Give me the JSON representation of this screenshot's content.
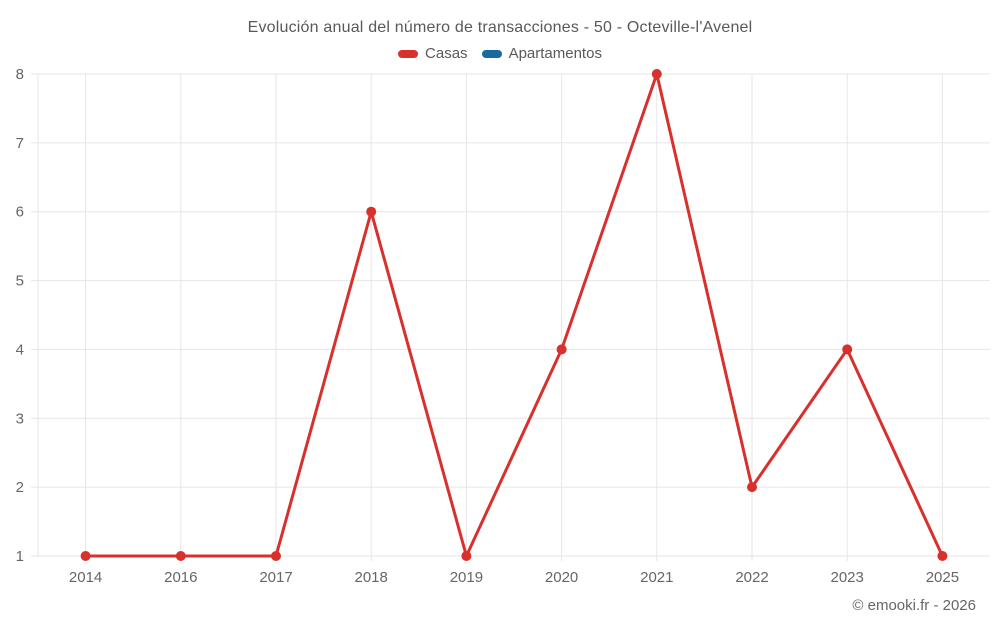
{
  "header": {
    "title": "Evolución anual del número de transacciones - 50 - Octeville-l'Avenel"
  },
  "legend": {
    "items": [
      {
        "label": "Casas",
        "color": "#d8302d"
      },
      {
        "label": "Apartamentos",
        "color": "#17699e"
      }
    ]
  },
  "footer": {
    "copyright": "© emooki.fr - 2026"
  },
  "chart_data": {
    "type": "line",
    "title": "Evolución anual del número de transacciones - 50 - Octeville-l'Avenel",
    "categories": [
      "2014",
      "2016",
      "2017",
      "2018",
      "2019",
      "2020",
      "2021",
      "2022",
      "2023",
      "2025"
    ],
    "series": [
      {
        "name": "Casas",
        "color": "#d8302d",
        "values": [
          1,
          1,
          1,
          6,
          1,
          4,
          8,
          2,
          4,
          1
        ]
      },
      {
        "name": "Apartamentos",
        "color": "#17699e",
        "values": []
      }
    ],
    "xlabel": "",
    "ylabel": "",
    "ylim": [
      1,
      8
    ],
    "yticks": [
      1,
      2,
      3,
      4,
      5,
      6,
      7,
      8
    ],
    "grid": true,
    "legend_position": "top",
    "grid_color": "#e6e6e6",
    "axis_label_color": "#666666",
    "marker_radius": 5,
    "line_width": 3
  }
}
